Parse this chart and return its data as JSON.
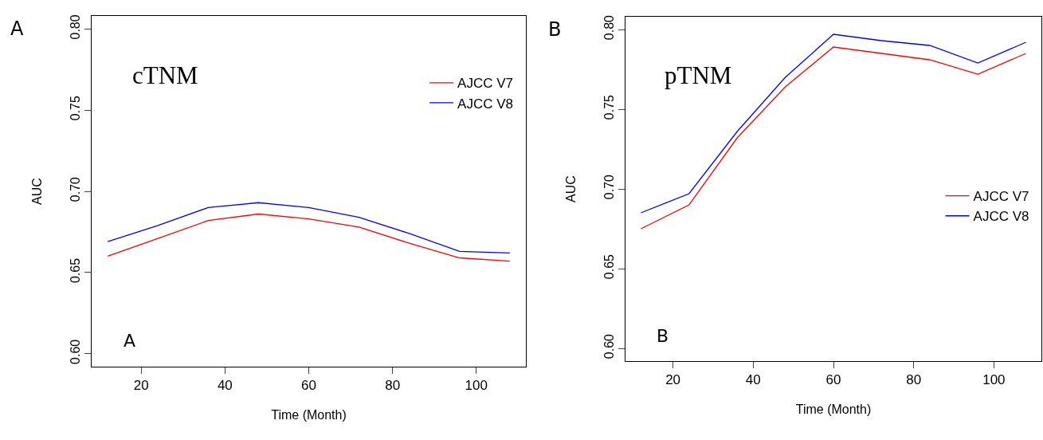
{
  "chart_data": [
    {
      "type": "line",
      "xlabel": "Time (Month)",
      "ylabel": "AUC",
      "x": [
        12,
        24,
        36,
        48,
        60,
        72,
        84,
        96,
        108
      ],
      "xlim": [
        8.16,
        111.84
      ],
      "ylim": [
        0.592,
        0.808
      ],
      "xticks": [
        20,
        40,
        60,
        80,
        100
      ],
      "yticks": [
        {
          "value": 0.6,
          "label": "0.60"
        },
        {
          "value": 0.65,
          "label": "0.65"
        },
        {
          "value": 0.7,
          "label": "0.70"
        },
        {
          "value": 0.75,
          "label": "0.75"
        },
        {
          "value": 0.8,
          "label": "0.80"
        }
      ],
      "grid": false,
      "legend": "top right",
      "marker": "none",
      "line_style": "solid",
      "annotations": [
        "A",
        "cTNM",
        "A"
      ],
      "series": [
        {
          "name": "AJCC V7",
          "color": "#ff0000",
          "values": [
            0.66,
            0.671,
            0.682,
            0.686,
            0.683,
            0.678,
            0.668,
            0.659,
            0.657
          ]
        },
        {
          "name": "AJCC V8",
          "color": "#0000ff",
          "values": [
            0.669,
            0.679,
            0.69,
            0.693,
            0.69,
            0.684,
            0.674,
            0.663,
            0.662
          ]
        }
      ]
    },
    {
      "type": "line",
      "xlabel": "Time (Month)",
      "ylabel": "AUC",
      "x": [
        12,
        24,
        36,
        48,
        60,
        72,
        84,
        96,
        108
      ],
      "xlim": [
        8.16,
        111.84
      ],
      "ylim": [
        0.592,
        0.808
      ],
      "xticks": [
        20,
        40,
        60,
        80,
        100
      ],
      "yticks": [
        {
          "value": 0.6,
          "label": "0.60"
        },
        {
          "value": 0.65,
          "label": "0.65"
        },
        {
          "value": 0.7,
          "label": "0.70"
        },
        {
          "value": 0.75,
          "label": "0.75"
        },
        {
          "value": 0.8,
          "label": "0.80"
        }
      ],
      "grid": false,
      "legend": "right",
      "marker": "none",
      "line_style": "solid",
      "annotations": [
        "B",
        "pTNM",
        "B"
      ],
      "series": [
        {
          "name": "AJCC V7",
          "color": "#ff0000",
          "values": [
            0.675,
            0.69,
            0.732,
            0.764,
            0.789,
            0.785,
            0.781,
            0.772,
            0.785
          ]
        },
        {
          "name": "AJCC V8",
          "color": "#0000ff",
          "values": [
            0.685,
            0.697,
            0.736,
            0.77,
            0.797,
            0.793,
            0.79,
            0.779,
            0.792
          ]
        }
      ]
    }
  ]
}
